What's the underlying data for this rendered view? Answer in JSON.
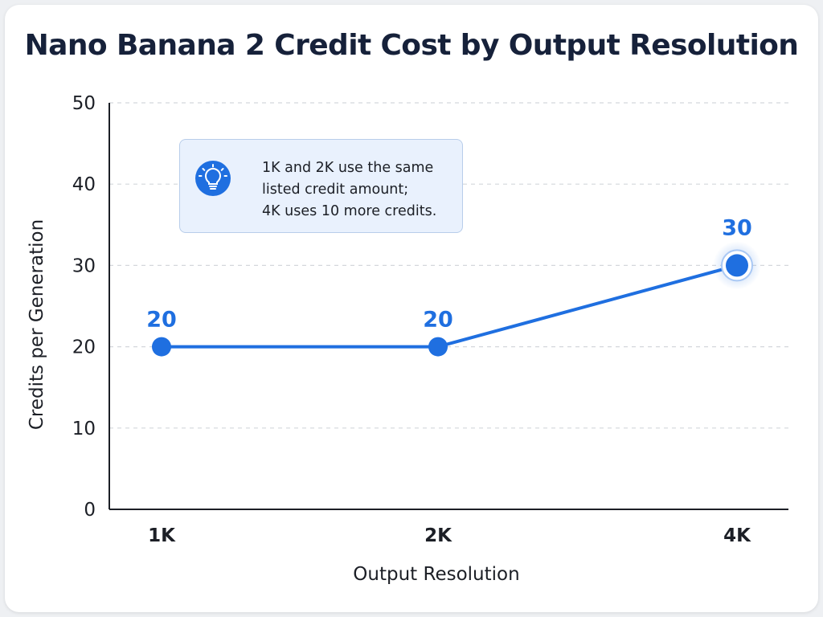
{
  "chart_data": {
    "type": "line",
    "title": "Nano Banana 2 Credit Cost by Output Resolution",
    "xlabel": "Output Resolution",
    "ylabel": "Credits per Generation",
    "categories": [
      "1K",
      "2K",
      "4K"
    ],
    "values": [
      20,
      20,
      30
    ],
    "data_labels": [
      "20",
      "20",
      "30"
    ],
    "ylim": [
      0,
      50
    ],
    "yticks": [
      0,
      10,
      20,
      30,
      40,
      50
    ],
    "grid": true,
    "highlight_index": 2,
    "annotation": {
      "icon": "lightbulb-icon",
      "lines": [
        "1K and 2K use the same",
        "listed credit amount;",
        "4K uses 10 more credits."
      ]
    }
  },
  "colors": {
    "line": "#1f6fe0",
    "label": "#1f6fe0",
    "grid": "#d4d7dc",
    "axis": "#1c1f26"
  }
}
